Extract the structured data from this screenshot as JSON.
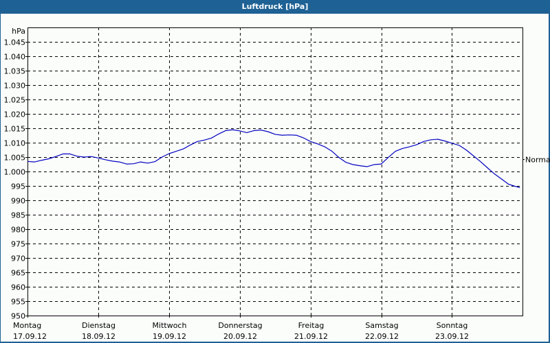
{
  "window": {
    "title": "Luftdruck [hPa]"
  },
  "chart_data": {
    "type": "line",
    "title": "Luftdruck [hPa]",
    "xlabel": "",
    "ylabel": "hPa",
    "ylim": [
      950,
      1050
    ],
    "yticks": [
      {
        "value": 950,
        "label": "950"
      },
      {
        "value": 955,
        "label": "955"
      },
      {
        "value": 960,
        "label": "960"
      },
      {
        "value": 965,
        "label": "965"
      },
      {
        "value": 970,
        "label": "970"
      },
      {
        "value": 975,
        "label": "975"
      },
      {
        "value": 980,
        "label": "980"
      },
      {
        "value": 985,
        "label": "985"
      },
      {
        "value": 990,
        "label": "990"
      },
      {
        "value": 995,
        "label": "995"
      },
      {
        "value": 1000,
        "label": "1.000"
      },
      {
        "value": 1005,
        "label": "1.005"
      },
      {
        "value": 1010,
        "label": "1.010"
      },
      {
        "value": 1015,
        "label": "1.015"
      },
      {
        "value": 1020,
        "label": "1.020"
      },
      {
        "value": 1025,
        "label": "1.025"
      },
      {
        "value": 1030,
        "label": "1.030"
      },
      {
        "value": 1035,
        "label": "1.035"
      },
      {
        "value": 1040,
        "label": "1.040"
      },
      {
        "value": 1045,
        "label": "1.045"
      }
    ],
    "categories": [
      {
        "day": "Montag",
        "date": "17.09.12"
      },
      {
        "day": "Dienstag",
        "date": "18.09.12"
      },
      {
        "day": "Mittwoch",
        "date": "19.09.12"
      },
      {
        "day": "Donnerstag",
        "date": "20.09.12"
      },
      {
        "day": "Freitag",
        "date": "21.09.12"
      },
      {
        "day": "Samstag",
        "date": "22.09.12"
      },
      {
        "day": "Sonntag",
        "date": "23.09.12"
      }
    ],
    "xrange_days": [
      0,
      7
    ],
    "reference_line": {
      "label": "Normal",
      "value": 1004.3
    },
    "grid": true,
    "legend": "none",
    "series": [
      {
        "name": "Luftdruck",
        "color": "#0000c0",
        "x": [
          0,
          0.1,
          0.2,
          0.3,
          0.4,
          0.5,
          0.6,
          0.7,
          0.8,
          0.9,
          1.0,
          1.1,
          1.2,
          1.3,
          1.4,
          1.5,
          1.6,
          1.7,
          1.8,
          1.9,
          2.0,
          2.1,
          2.2,
          2.3,
          2.4,
          2.5,
          2.6,
          2.7,
          2.8,
          2.9,
          3.0,
          3.1,
          3.2,
          3.3,
          3.4,
          3.5,
          3.6,
          3.7,
          3.8,
          3.9,
          4.0,
          4.1,
          4.2,
          4.3,
          4.4,
          4.5,
          4.6,
          4.7,
          4.8,
          4.9,
          5.0,
          5.1,
          5.2,
          5.3,
          5.4,
          5.5,
          5.6,
          5.7,
          5.8,
          5.9,
          6.0,
          6.1,
          6.2,
          6.3,
          6.4,
          6.5,
          6.6,
          6.7,
          6.8,
          6.9,
          6.96
        ],
        "values": [
          1003.5,
          1003.3,
          1003.9,
          1004.4,
          1005.2,
          1006.1,
          1006.1,
          1005.3,
          1005.0,
          1005.2,
          1004.7,
          1004.1,
          1003.6,
          1003.3,
          1002.6,
          1002.7,
          1003.3,
          1002.9,
          1003.4,
          1005.0,
          1006.2,
          1007.0,
          1007.8,
          1009.2,
          1010.4,
          1010.9,
          1011.6,
          1013.0,
          1014.2,
          1014.5,
          1014.1,
          1013.5,
          1014.2,
          1014.4,
          1013.8,
          1012.9,
          1012.6,
          1012.7,
          1012.6,
          1011.7,
          1010.4,
          1009.6,
          1008.6,
          1007.1,
          1004.9,
          1003.2,
          1002.4,
          1002.0,
          1001.7,
          1002.4,
          1002.6,
          1004.9,
          1007.0,
          1008.0,
          1008.6,
          1009.3,
          1010.4,
          1011.0,
          1011.2,
          1010.6,
          1009.8,
          1009.1,
          1007.5,
          1005.5,
          1003.5,
          1001.3,
          999.2,
          997.4,
          995.6,
          994.8,
          994.4
        ]
      }
    ]
  }
}
